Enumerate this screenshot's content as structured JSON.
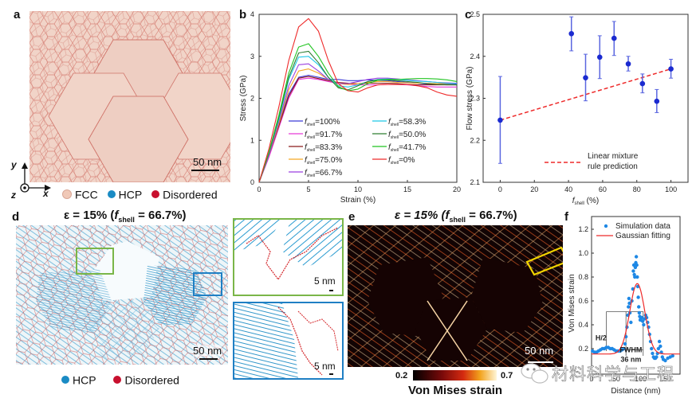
{
  "panels": {
    "a": {
      "label": "a",
      "scalebar": "50 nm",
      "axes": {
        "y": "y",
        "x": "x",
        "z": "z"
      },
      "legend": [
        {
          "name": "FCC",
          "color": "#f0c9b8"
        },
        {
          "name": "HCP",
          "color": "#1a8bc4"
        },
        {
          "name": "Disordered",
          "color": "#c8102e"
        }
      ]
    },
    "d": {
      "label": "d",
      "title_prefix": "ε = 15% (",
      "title_f": "f",
      "title_sub": "shell",
      "title_suffix": " = 66.7%)",
      "scalebar": "50 nm",
      "inset_scalebar": "5 nm",
      "legend": [
        {
          "name": "HCP",
          "color": "#1a8bc4"
        },
        {
          "name": "Disordered",
          "color": "#c8102e"
        }
      ],
      "inset_colors": {
        "green": "#7ab648",
        "blue": "#1f7fc4"
      }
    },
    "e": {
      "label": "e",
      "title_prefix": "ε  = 15% (",
      "title_f": "f",
      "title_sub": "shell",
      "title_suffix": " = 66.7%)",
      "scalebar": "50 nm",
      "colorbar_min": "0.2",
      "colorbar_max": "0.7",
      "colorbar_label": "Von Mises strain",
      "highlight_color": "#f2d400"
    }
  },
  "watermark": "材料科学与工程",
  "chart_data": [
    {
      "panel": "b",
      "type": "line",
      "title": "",
      "xlabel": "Strain (%)",
      "ylabel": "Stress (GPa)",
      "xlim": [
        0,
        20
      ],
      "ylim": [
        0,
        4
      ],
      "xticks": [
        "0",
        "5",
        "10",
        "15",
        "20"
      ],
      "yticks": [
        "0",
        "1",
        "2",
        "3",
        "4"
      ],
      "legend_sub": "shell",
      "legend_position": "lower-center",
      "series": [
        {
          "name": "=100%",
          "color": "#3b3bd6",
          "x": [
            0,
            1,
            2,
            3,
            4,
            5,
            6,
            7,
            8,
            9,
            10,
            11,
            12,
            13,
            14,
            15,
            16,
            17,
            18,
            19,
            20
          ],
          "y": [
            0,
            0.7,
            1.4,
            2.1,
            2.5,
            2.55,
            2.5,
            2.45,
            2.45,
            2.42,
            2.42,
            2.44,
            2.43,
            2.42,
            2.4,
            2.38,
            2.36,
            2.34,
            2.33,
            2.33,
            2.33
          ]
        },
        {
          "name": "=91.7%",
          "color": "#e83ad8",
          "x": [
            0,
            1,
            2,
            3,
            4,
            5,
            6,
            7,
            8,
            9,
            10,
            11,
            12,
            13,
            14,
            15,
            16,
            17,
            18,
            19,
            20
          ],
          "y": [
            0,
            0.6,
            1.3,
            2.0,
            2.45,
            2.48,
            2.45,
            2.4,
            2.35,
            2.33,
            2.32,
            2.32,
            2.32,
            2.33,
            2.33,
            2.32,
            2.3,
            2.28,
            2.27,
            2.27,
            2.27
          ]
        },
        {
          "name": "=83.3%",
          "color": "#8b1a1a",
          "x": [
            0,
            1,
            2,
            3,
            4,
            5,
            6,
            7,
            8,
            9,
            10,
            11,
            12,
            13,
            14,
            15,
            16,
            17,
            18,
            19,
            20
          ],
          "y": [
            0,
            0.65,
            1.35,
            2.05,
            2.48,
            2.52,
            2.47,
            2.42,
            2.38,
            2.36,
            2.35,
            2.36,
            2.36,
            2.36,
            2.35,
            2.33,
            2.32,
            2.32,
            2.32,
            2.32,
            2.32
          ]
        },
        {
          "name": "=75.0%",
          "color": "#f5a623",
          "x": [
            0,
            1,
            2,
            3,
            4,
            5,
            6,
            7,
            8,
            9,
            10,
            11,
            12,
            13,
            14,
            15,
            16,
            17,
            18,
            19,
            20
          ],
          "y": [
            0,
            0.65,
            1.4,
            2.2,
            2.65,
            2.7,
            2.6,
            2.45,
            2.35,
            2.33,
            2.35,
            2.38,
            2.4,
            2.4,
            2.38,
            2.37,
            2.36,
            2.36,
            2.35,
            2.35,
            2.35
          ]
        },
        {
          "name": "=66.7%",
          "color": "#9b3fe0",
          "x": [
            0,
            1,
            2,
            3,
            4,
            5,
            6,
            7,
            8,
            9,
            10,
            11,
            12,
            13,
            14,
            15,
            16,
            17,
            18,
            19,
            20
          ],
          "y": [
            0,
            0.65,
            1.45,
            2.3,
            2.8,
            2.82,
            2.65,
            2.45,
            2.35,
            2.35,
            2.4,
            2.45,
            2.48,
            2.48,
            2.46,
            2.44,
            2.42,
            2.4,
            2.38,
            2.37,
            2.36
          ]
        },
        {
          "name": "=58.3%",
          "color": "#1fc8e8",
          "x": [
            0,
            1,
            2,
            3,
            4,
            5,
            6,
            7,
            8,
            9,
            10,
            11,
            12,
            13,
            14,
            15,
            16,
            17,
            18,
            19,
            20
          ],
          "y": [
            0,
            0.7,
            1.5,
            2.45,
            2.98,
            3.0,
            2.8,
            2.5,
            2.3,
            2.27,
            2.32,
            2.4,
            2.45,
            2.46,
            2.45,
            2.43,
            2.41,
            2.4,
            2.38,
            2.36,
            2.35
          ]
        },
        {
          "name": "=50.0%",
          "color": "#2e7d32",
          "x": [
            0,
            1,
            2,
            3,
            4,
            5,
            6,
            7,
            8,
            9,
            10,
            11,
            12,
            13,
            14,
            15,
            16,
            17,
            18,
            19,
            20
          ],
          "y": [
            0,
            0.7,
            1.55,
            2.5,
            3.08,
            3.12,
            2.85,
            2.5,
            2.25,
            2.2,
            2.3,
            2.4,
            2.44,
            2.44,
            2.42,
            2.4,
            2.38,
            2.35,
            2.33,
            2.32,
            2.32
          ]
        },
        {
          "name": "=41.7%",
          "color": "#22c422",
          "x": [
            0,
            1,
            2,
            3,
            4,
            5,
            6,
            7,
            8,
            9,
            10,
            11,
            12,
            13,
            14,
            15,
            16,
            17,
            18,
            19,
            20
          ],
          "y": [
            0,
            0.72,
            1.6,
            2.6,
            3.22,
            3.3,
            3.0,
            2.6,
            2.28,
            2.18,
            2.22,
            2.35,
            2.43,
            2.45,
            2.45,
            2.46,
            2.47,
            2.47,
            2.46,
            2.44,
            2.4
          ]
        },
        {
          "name": "=0%",
          "color": "#ee2a2a",
          "x": [
            0,
            1,
            2,
            3,
            4,
            5,
            6,
            7,
            8,
            9,
            10,
            11,
            12,
            13,
            14,
            15,
            16,
            17,
            18,
            19,
            20
          ],
          "y": [
            0,
            0.8,
            1.8,
            2.9,
            3.7,
            3.9,
            3.6,
            2.9,
            2.35,
            2.18,
            2.15,
            2.25,
            2.32,
            2.33,
            2.33,
            2.33,
            2.3,
            2.25,
            2.15,
            2.08,
            2.05
          ]
        }
      ]
    },
    {
      "panel": "c",
      "type": "scatter",
      "xlabel_f": "f",
      "xlabel_sub": "shell",
      "xlabel_suffix": " (%)",
      "ylabel": "Flow stress (GPa)",
      "xlim": [
        -10,
        110
      ],
      "ylim": [
        2.1,
        2.5
      ],
      "xticks": [
        "0",
        "20",
        "40",
        "60",
        "80",
        "100"
      ],
      "yticks": [
        "2.1",
        "2.2",
        "2.3",
        "2.4",
        "2.5"
      ],
      "points_color": "#1a2ad0",
      "errorbar_color": "#5a66e0",
      "points": [
        {
          "x": 0,
          "y": 2.248,
          "err_low": 2.145,
          "err_high": 2.352
        },
        {
          "x": 41.7,
          "y": 2.454,
          "err_low": 2.413,
          "err_high": 2.494
        },
        {
          "x": 50.0,
          "y": 2.349,
          "err_low": 2.294,
          "err_high": 2.405
        },
        {
          "x": 58.3,
          "y": 2.398,
          "err_low": 2.347,
          "err_high": 2.449
        },
        {
          "x": 66.7,
          "y": 2.443,
          "err_low": 2.402,
          "err_high": 2.483
        },
        {
          "x": 75.0,
          "y": 2.382,
          "err_low": 2.365,
          "err_high": 2.4
        },
        {
          "x": 83.3,
          "y": 2.335,
          "err_low": 2.313,
          "err_high": 2.358
        },
        {
          "x": 91.7,
          "y": 2.293,
          "err_low": 2.266,
          "err_high": 2.321
        },
        {
          "x": 100,
          "y": 2.37,
          "err_low": 2.348,
          "err_high": 2.393
        }
      ],
      "fit_line": {
        "name_line1": "Linear mixture",
        "name_line2": "rule prediction",
        "color": "#ee2a2a",
        "x": [
          0,
          100
        ],
        "y": [
          2.248,
          2.37
        ]
      }
    },
    {
      "panel": "f",
      "type": "scatter",
      "xlabel": "Distance (nm)",
      "ylabel": "Von Mises strain",
      "xlim": [
        0,
        180
      ],
      "ylim": [
        0.0,
        1.3
      ],
      "xticks": [
        "0",
        "50",
        "100",
        "150"
      ],
      "yticks": [
        "0.2",
        "0.4",
        "0.6",
        "0.8",
        "1.0",
        "1.2"
      ],
      "legend": [
        {
          "name": "Simulation data",
          "color": "#1e88e5",
          "kind": "dot"
        },
        {
          "name": "Gaussian fitting",
          "color": "#ee2a2a",
          "kind": "line"
        }
      ],
      "annotations": {
        "half_height": "H/2",
        "fwhm": "FWHM",
        "fwhm_value": "36 nm"
      },
      "gaussian": {
        "baseline": 0.155,
        "amplitude": 0.59,
        "center": 93,
        "fwhm": 36
      },
      "points": [
        [
          2,
          0.18
        ],
        [
          6,
          0.17
        ],
        [
          10,
          0.17
        ],
        [
          14,
          0.18
        ],
        [
          18,
          0.19
        ],
        [
          22,
          0.2
        ],
        [
          26,
          0.2
        ],
        [
          30,
          0.21
        ],
        [
          34,
          0.21
        ],
        [
          38,
          0.2
        ],
        [
          42,
          0.2
        ],
        [
          46,
          0.19
        ],
        [
          50,
          0.18
        ],
        [
          54,
          0.18
        ],
        [
          58,
          0.18
        ],
        [
          62,
          0.19
        ],
        [
          66,
          0.2
        ],
        [
          68,
          0.24
        ],
        [
          70,
          0.3
        ],
        [
          72,
          0.38
        ],
        [
          74,
          0.48
        ],
        [
          75,
          0.55
        ],
        [
          76,
          0.62
        ],
        [
          77,
          0.58
        ],
        [
          78,
          0.5
        ],
        [
          80,
          0.42
        ],
        [
          82,
          0.6
        ],
        [
          84,
          0.7
        ],
        [
          85,
          0.85
        ],
        [
          86,
          0.9
        ],
        [
          87,
          0.82
        ],
        [
          88,
          0.8
        ],
        [
          89,
          0.88
        ],
        [
          90,
          0.92
        ],
        [
          91,
          0.97
        ],
        [
          92,
          0.9
        ],
        [
          93,
          0.8
        ],
        [
          94,
          0.72
        ],
        [
          95,
          0.63
        ],
        [
          96,
          0.55
        ],
        [
          97,
          0.5
        ],
        [
          98,
          0.47
        ],
        [
          99,
          0.44
        ],
        [
          100,
          0.45
        ],
        [
          102,
          0.46
        ],
        [
          104,
          0.43
        ],
        [
          106,
          0.4
        ],
        [
          108,
          0.45
        ],
        [
          110,
          0.48
        ],
        [
          112,
          0.46
        ],
        [
          114,
          0.42
        ],
        [
          116,
          0.38
        ],
        [
          118,
          0.32
        ],
        [
          120,
          0.26
        ],
        [
          122,
          0.2
        ],
        [
          124,
          0.16
        ],
        [
          126,
          0.13
        ],
        [
          128,
          0.12
        ],
        [
          130,
          0.12
        ],
        [
          132,
          0.13
        ],
        [
          134,
          0.16
        ],
        [
          136,
          0.2
        ],
        [
          138,
          0.26
        ],
        [
          140,
          0.22
        ],
        [
          142,
          0.17
        ],
        [
          144,
          0.13
        ],
        [
          146,
          0.11
        ],
        [
          150,
          0.1
        ],
        [
          155,
          0.12
        ],
        [
          160,
          0.13
        ],
        [
          165,
          0.14
        ]
      ]
    }
  ]
}
